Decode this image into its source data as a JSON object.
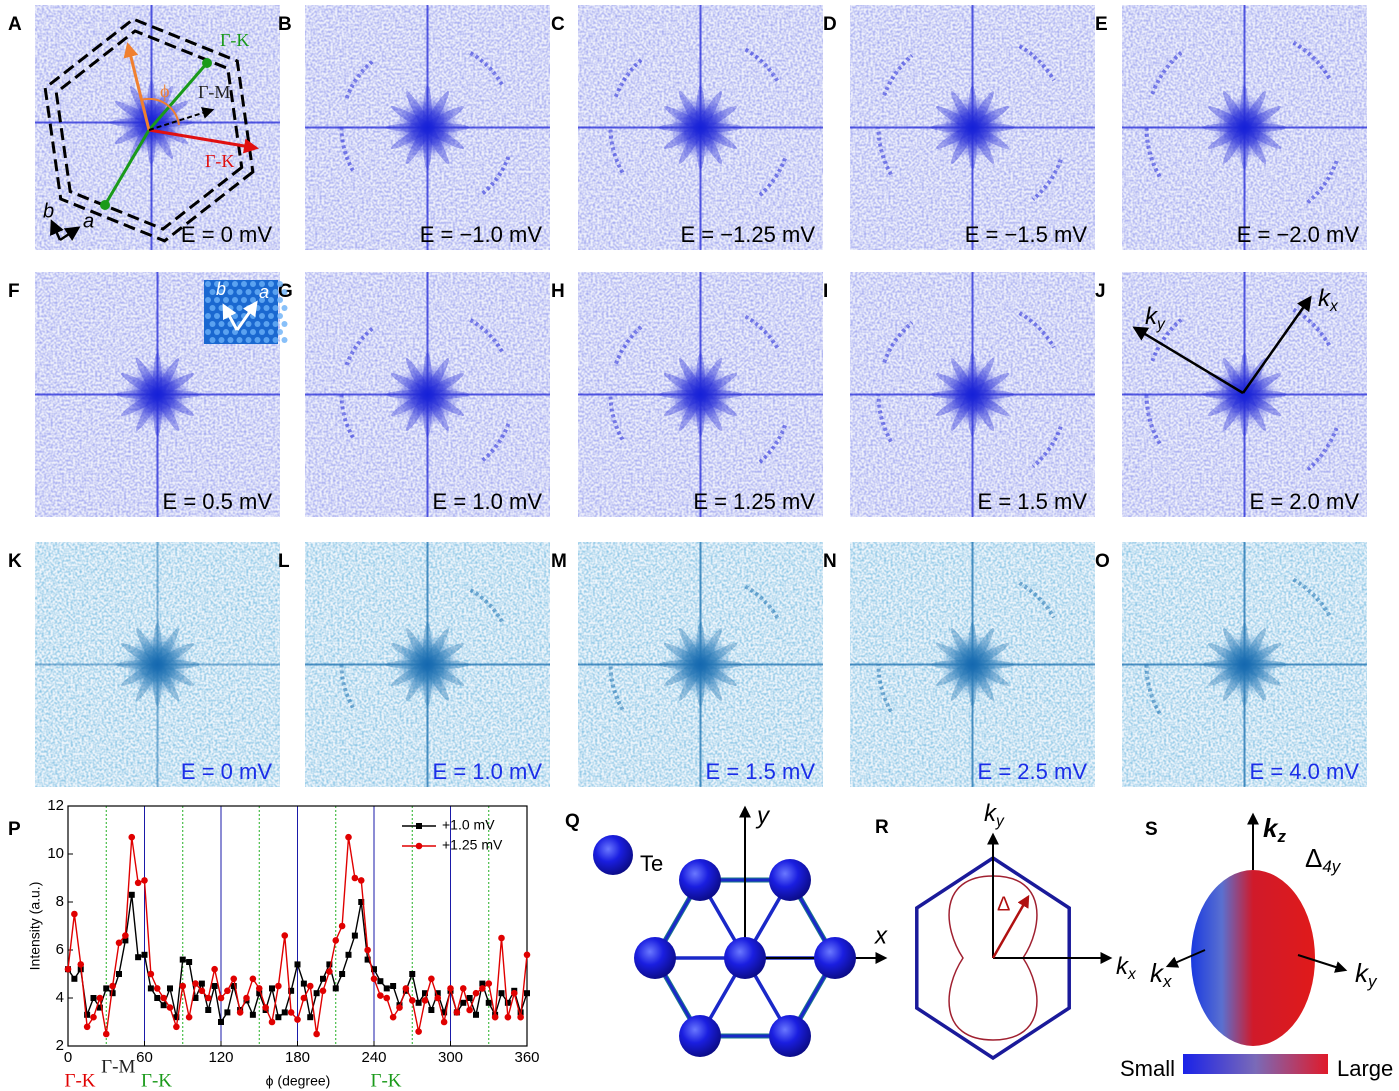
{
  "panels": [
    {
      "letter": "A",
      "energy": "E = 0 mV"
    },
    {
      "letter": "B",
      "energy": "E = −1.0 mV"
    },
    {
      "letter": "C",
      "energy": "E = −1.25 mV"
    },
    {
      "letter": "D",
      "energy": "E = −1.5 mV"
    },
    {
      "letter": "E",
      "energy": "E = −2.0 mV"
    },
    {
      "letter": "F",
      "energy": "E = 0.5 mV"
    },
    {
      "letter": "G",
      "energy": "E = 1.0 mV"
    },
    {
      "letter": "H",
      "energy": "E = 1.25 mV"
    },
    {
      "letter": "I",
      "energy": "E = 1.5 mV"
    },
    {
      "letter": "J",
      "energy": "E = 2.0 mV"
    },
    {
      "letter": "K",
      "energy": "E = 0 mV"
    },
    {
      "letter": "L",
      "energy": "E = 1.0 mV"
    },
    {
      "letter": "M",
      "energy": "E = 1.5 mV"
    },
    {
      "letter": "N",
      "energy": "E = 2.5 mV"
    },
    {
      "letter": "O",
      "energy": "E = 4.0 mV"
    }
  ],
  "panel_a": {
    "gk_green": "Γ-K",
    "gm": "Γ-M",
    "gk_red": "Γ-K",
    "phi": "ϕ",
    "a": "a",
    "b": "b"
  },
  "panel_f_inset": {
    "a": "a",
    "b": "b"
  },
  "panel_j": {
    "kx": "k",
    "kx_sub": "x",
    "ky": "k",
    "ky_sub": "y"
  },
  "panel_q": {
    "letter": "Q",
    "atom": "Te",
    "x": "x",
    "y": "y"
  },
  "panel_r": {
    "letter": "R",
    "kx": "k",
    "kx_sub": "x",
    "ky": "k",
    "ky_sub": "y",
    "delta": "Δ"
  },
  "panel_s": {
    "letter": "S",
    "kz": "k",
    "kz_sub": "z",
    "gap": "Δ",
    "gap_sub": "4y",
    "kx": "k",
    "kx_sub": "x",
    "ky": "k",
    "ky_sub": "y",
    "small": "Small",
    "large": "Large"
  },
  "chart_data": {
    "type": "line",
    "letter": "P",
    "xlabel": "ϕ (degree)",
    "ylabel": "Intensity (a.u.)",
    "xlim": [
      0,
      360
    ],
    "ylim": [
      2,
      12
    ],
    "xticks": [
      0,
      60,
      120,
      180,
      240,
      300,
      360
    ],
    "yticks": [
      2,
      4,
      6,
      8,
      10,
      12
    ],
    "vlines_solid": [
      60,
      120,
      180,
      240,
      300
    ],
    "vlines_solid_color": "#1a1aa8",
    "vlines_dotted": [
      30,
      90,
      150,
      210,
      270,
      330
    ],
    "vlines_dotted_color": "#22b022",
    "legend": "upper right",
    "annotations": [
      {
        "text": "Γ-K",
        "x": 0,
        "color": "#e00000"
      },
      {
        "text": "Γ-M",
        "x": 30,
        "color": "#222222"
      },
      {
        "text": "Γ-K",
        "x": 60,
        "color": "#1a9a1a"
      },
      {
        "text": "Γ-K",
        "x": 240,
        "color": "#1a9a1a"
      }
    ],
    "x": [
      0,
      5,
      10,
      15,
      20,
      25,
      30,
      35,
      40,
      45,
      50,
      55,
      60,
      65,
      70,
      75,
      80,
      85,
      90,
      95,
      100,
      105,
      110,
      115,
      120,
      125,
      130,
      135,
      140,
      145,
      150,
      155,
      160,
      165,
      170,
      175,
      180,
      185,
      190,
      195,
      200,
      205,
      210,
      215,
      220,
      225,
      230,
      235,
      240,
      245,
      250,
      255,
      260,
      265,
      270,
      275,
      280,
      285,
      290,
      295,
      300,
      305,
      310,
      315,
      320,
      325,
      330,
      335,
      340,
      345,
      350,
      355,
      360
    ],
    "series": [
      {
        "name": "+1.0 mV",
        "color": "#000000",
        "marker": "square",
        "values": [
          5.2,
          4.8,
          5.2,
          3.3,
          4.0,
          3.6,
          4.4,
          4.2,
          5.0,
          6.4,
          8.3,
          5.7,
          5.8,
          4.4,
          4.0,
          3.7,
          4.4,
          3.2,
          5.6,
          5.5,
          4.0,
          4.6,
          3.5,
          4.5,
          3.0,
          3.4,
          4.5,
          3.5,
          3.9,
          3.3,
          4.2,
          3.5,
          4.4,
          3.2,
          3.4,
          4.3,
          5.4,
          4.6,
          3.2,
          4.2,
          4.8,
          5.4,
          4.4,
          5.0,
          5.8,
          6.6,
          8.0,
          5.6,
          5.2,
          4.7,
          4.4,
          4.5,
          3.7,
          4.3,
          5.0,
          3.8,
          4.2,
          3.5,
          4.2,
          3.4,
          4.3,
          3.4,
          3.8,
          4.0,
          3.3,
          4.6,
          3.8,
          3.3,
          4.2,
          3.8,
          4.3,
          3.4,
          4.2
        ]
      },
      {
        "name": "+1.25 mV",
        "color": "#e00000",
        "marker": "circle",
        "values": [
          5.2,
          7.5,
          5.4,
          2.8,
          3.2,
          4.0,
          2.5,
          4.5,
          6.3,
          6.6,
          10.7,
          8.8,
          8.9,
          5.0,
          4.4,
          4.0,
          3.6,
          2.8,
          4.5,
          3.2,
          4.6,
          4.3,
          4.0,
          5.2,
          4.0,
          4.3,
          4.8,
          3.4,
          4.0,
          4.8,
          4.4,
          3.6,
          3.0,
          4.5,
          6.6,
          3.4,
          3.1,
          4.0,
          4.5,
          2.5,
          4.3,
          5.1,
          6.4,
          7.0,
          10.7,
          9.0,
          8.9,
          6.0,
          4.8,
          4.1,
          4.0,
          3.2,
          3.6,
          4.4,
          3.9,
          2.6,
          3.9,
          4.8,
          4.0,
          3.0,
          4.4,
          3.4,
          4.4,
          3.5,
          4.2,
          4.4,
          4.6,
          3.2,
          6.5,
          3.2,
          4.2,
          3.2,
          5.8
        ]
      }
    ]
  }
}
